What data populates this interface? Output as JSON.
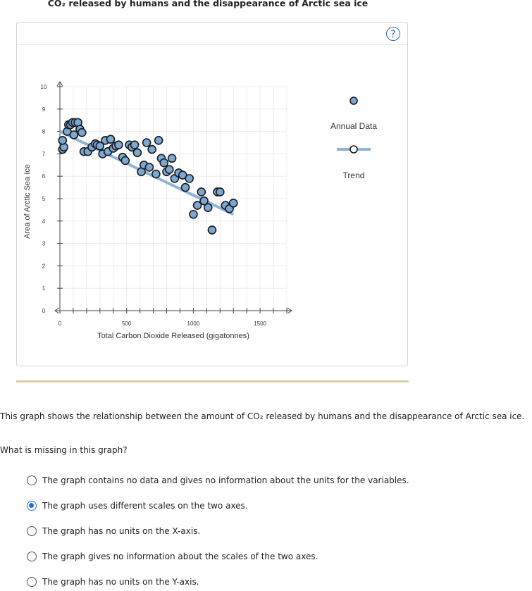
{
  "page": {
    "title": "CO₂ released by humans and the disappearance of Arctic sea ice",
    "help_label": "?"
  },
  "legend": {
    "annual_label": "Annual Data",
    "trend_label": "Trend"
  },
  "colors": {
    "point_fill": "#7ba7d4",
    "point_stroke": "#1a1a1a",
    "trend": "#8fb3d9",
    "divider": "#d9cf9e",
    "radio_selected": "#1a73e8"
  },
  "chart_data": {
    "type": "scatter",
    "xlabel": "Total Carbon Dioxide Released (gigatonnes)",
    "ylabel": "Area of Arctic Sea Ice",
    "xlim": [
      0,
      1700
    ],
    "ylim": [
      0,
      10
    ],
    "x_tick_labels": [
      {
        "value": 0,
        "label": "0"
      },
      {
        "value": 500,
        "label": "500"
      },
      {
        "value": 1000,
        "label": "1000"
      },
      {
        "value": 1500,
        "label": "1500"
      }
    ],
    "y_tick_labels": [
      "0",
      "1",
      "2",
      "3",
      "4",
      "5",
      "6",
      "7",
      "8",
      "9",
      "10"
    ],
    "grid": true,
    "legend_position": "right",
    "series": [
      {
        "name": "Annual Data",
        "points": [
          [
            20,
            7.2
          ],
          [
            30,
            7.3
          ],
          [
            20,
            7.6
          ],
          [
            55,
            8.0
          ],
          [
            65,
            8.3
          ],
          [
            80,
            8.3
          ],
          [
            95,
            8.4
          ],
          [
            105,
            7.85
          ],
          [
            115,
            8.4
          ],
          [
            135,
            8.4
          ],
          [
            150,
            8.1
          ],
          [
            165,
            7.95
          ],
          [
            180,
            7.1
          ],
          [
            210,
            7.1
          ],
          [
            240,
            7.3
          ],
          [
            265,
            7.45
          ],
          [
            280,
            7.4
          ],
          [
            300,
            7.35
          ],
          [
            320,
            7.0
          ],
          [
            340,
            7.6
          ],
          [
            360,
            7.1
          ],
          [
            380,
            7.65
          ],
          [
            400,
            7.25
          ],
          [
            420,
            7.35
          ],
          [
            440,
            7.4
          ],
          [
            470,
            6.85
          ],
          [
            490,
            6.7
          ],
          [
            520,
            7.4
          ],
          [
            540,
            7.3
          ],
          [
            560,
            7.4
          ],
          [
            580,
            7.05
          ],
          [
            610,
            6.2
          ],
          [
            630,
            6.5
          ],
          [
            650,
            7.5
          ],
          [
            670,
            6.4
          ],
          [
            690,
            7.2
          ],
          [
            720,
            6.1
          ],
          [
            740,
            7.6
          ],
          [
            760,
            6.8
          ],
          [
            780,
            6.6
          ],
          [
            800,
            6.2
          ],
          [
            820,
            6.3
          ],
          [
            840,
            6.8
          ],
          [
            860,
            5.9
          ],
          [
            890,
            6.15
          ],
          [
            920,
            6.05
          ],
          [
            940,
            5.5
          ],
          [
            970,
            5.9
          ],
          [
            1000,
            4.3
          ],
          [
            1030,
            4.7
          ],
          [
            1060,
            5.3
          ],
          [
            1080,
            4.9
          ],
          [
            1110,
            4.6
          ],
          [
            1140,
            3.6
          ],
          [
            1180,
            5.3
          ],
          [
            1200,
            5.3
          ],
          [
            1240,
            4.7
          ],
          [
            1270,
            4.55
          ],
          [
            1300,
            4.8
          ]
        ]
      },
      {
        "name": "Trend",
        "line": [
          [
            0,
            8.0
          ],
          [
            1300,
            4.3
          ]
        ]
      }
    ]
  },
  "description": "This graph shows the relationship between the amount of CO₂ released by humans and the disappearance of Arctic sea ice.",
  "question": "What is missing in this graph?",
  "options": [
    {
      "label": "The graph contains no data and gives no information about the units for the variables.",
      "selected": false
    },
    {
      "label": "The graph uses different scales on the two axes.",
      "selected": true
    },
    {
      "label": "The graph has no units on the X-axis.",
      "selected": false
    },
    {
      "label": "The graph gives no information about the scales of the two axes.",
      "selected": false
    },
    {
      "label": "The graph has no units on the Y-axis.",
      "selected": false
    }
  ]
}
